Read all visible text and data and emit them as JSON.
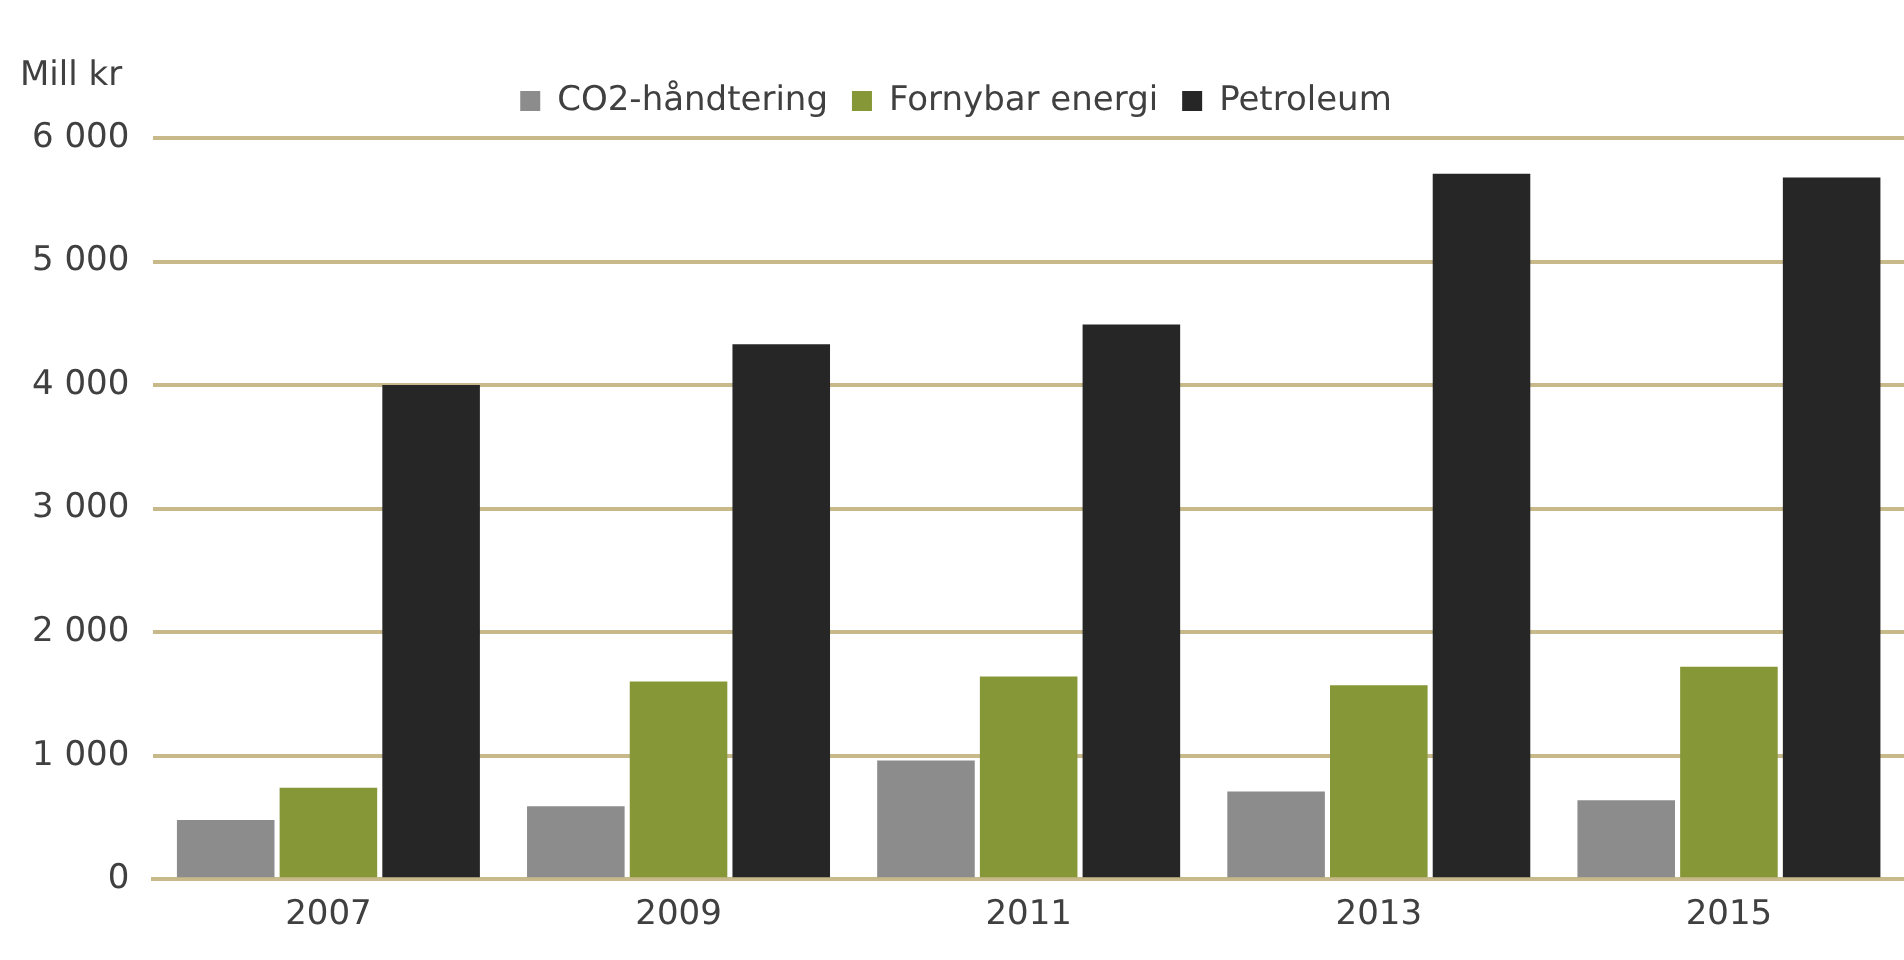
{
  "chart_data": {
    "type": "bar",
    "ylabel": "Mill kr",
    "categories": [
      "2007",
      "2009",
      "2011",
      "2013",
      "2015"
    ],
    "series": [
      {
        "name": "CO2-håndtering",
        "color": "#8c8c8c",
        "values": [
          480,
          590,
          960,
          710,
          640
        ]
      },
      {
        "name": "Fornybar energi",
        "color": "#859736",
        "values": [
          740,
          1600,
          1640,
          1570,
          1720
        ]
      },
      {
        "name": "Petroleum",
        "color": "#262626",
        "values": [
          4000,
          4330,
          4490,
          5710,
          5680
        ]
      }
    ],
    "ylim": [
      0,
      6000
    ],
    "yticks": [
      {
        "value": 0,
        "label": "0"
      },
      {
        "value": 1000,
        "label": "1 000"
      },
      {
        "value": 2000,
        "label": "2 000"
      },
      {
        "value": 3000,
        "label": "3 000"
      },
      {
        "value": 4000,
        "label": "4 000"
      },
      {
        "value": 5000,
        "label": "5 000"
      },
      {
        "value": 6000,
        "label": "6 000"
      }
    ],
    "grid": "y",
    "legend": "top"
  }
}
